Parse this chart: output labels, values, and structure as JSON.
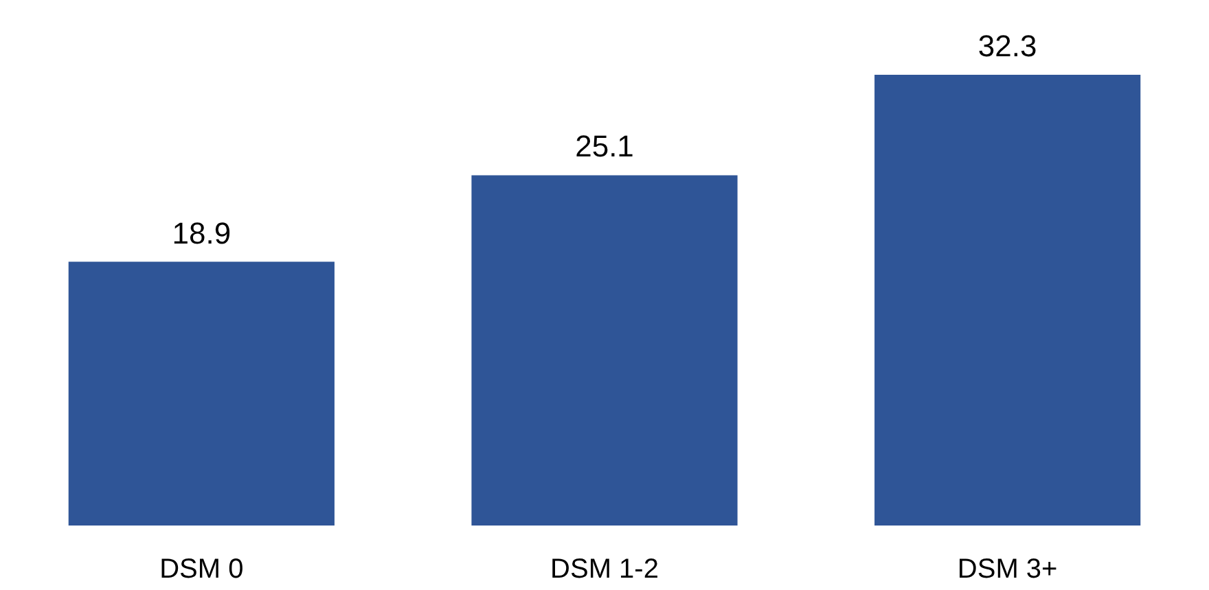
{
  "chart_data": {
    "type": "bar",
    "categories": [
      "DSM 0",
      "DSM 1-2",
      "DSM 3+"
    ],
    "values": [
      18.9,
      25.1,
      32.3
    ],
    "color": "#2f5597",
    "data_labels": true
  }
}
